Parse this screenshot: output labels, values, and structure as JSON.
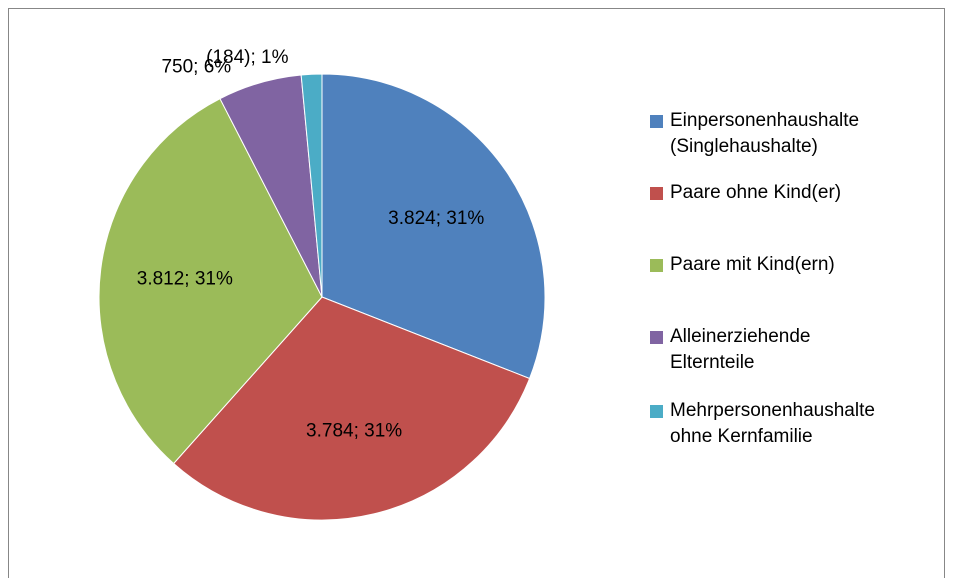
{
  "chart_data": {
    "type": "pie",
    "categories": [
      "Einpersonenhaushalte (Singlehaushalte)",
      "Paare ohne Kind(er)",
      "Paare mit Kind(ern)",
      "Alleinerziehende Elternteile",
      "Mehrpersonenhaushalte ohne Kernfamilie"
    ],
    "values": [
      3824,
      3784,
      3812,
      750,
      184
    ],
    "value_labels": [
      "3.824; 31%",
      "3.784; 31%",
      "3.812; 31%",
      "750; 6%",
      "(184); 1%"
    ],
    "colors": [
      "#4f81bd",
      "#c0504d",
      "#9bbb59",
      "#8064a2",
      "#4bacc6"
    ],
    "legend": "right"
  }
}
